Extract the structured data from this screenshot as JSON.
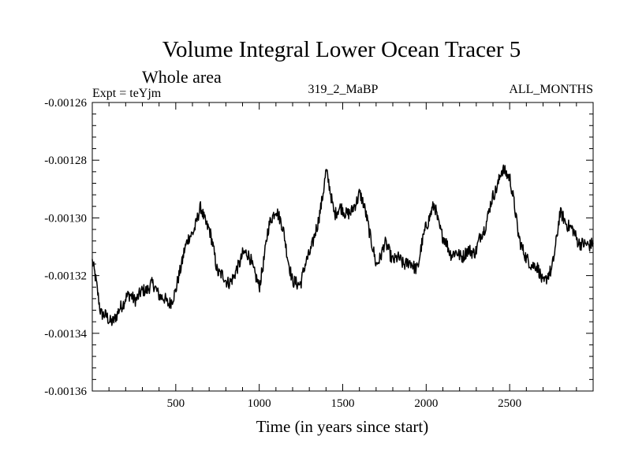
{
  "chart_data": {
    "type": "line",
    "title": "Volume Integral Lower Ocean Tracer 5",
    "subtitle": "Whole area",
    "expt_label": "Expt = teYjm",
    "center_label": "319_2_MaBP",
    "right_label": "ALL_MONTHS",
    "xlabel": "Time (in years since start)",
    "ylabel": "",
    "xlim": [
      0,
      3000
    ],
    "ylim": [
      -0.00136,
      -0.00126
    ],
    "x_ticks": [
      500,
      1000,
      1500,
      2000,
      2500
    ],
    "x_tick_labels": [
      "500",
      "1000",
      "1500",
      "2000",
      "2500"
    ],
    "y_ticks": [
      -0.00136,
      -0.00134,
      -0.00132,
      -0.0013,
      -0.00128,
      -0.00126
    ],
    "y_tick_labels": [
      "-0.00136",
      "-0.00134",
      "-0.00132",
      "-0.00130",
      "-0.00128",
      "-0.00126"
    ],
    "grid": false,
    "series": [
      {
        "name": "teYjm",
        "color": "#000000",
        "x": [
          0,
          50,
          100,
          150,
          200,
          250,
          300,
          350,
          400,
          450,
          500,
          550,
          600,
          650,
          700,
          750,
          800,
          850,
          900,
          950,
          1000,
          1050,
          1100,
          1150,
          1200,
          1250,
          1300,
          1350,
          1400,
          1450,
          1500,
          1550,
          1600,
          1650,
          1700,
          1750,
          1800,
          1850,
          1900,
          1950,
          2000,
          2050,
          2100,
          2150,
          2200,
          2250,
          2300,
          2350,
          2400,
          2450,
          2500,
          2550,
          2600,
          2650,
          2700,
          2750,
          2800,
          2850,
          2900,
          2950,
          3000
        ],
        "values": [
          -0.001315,
          -0.001332,
          -0.001336,
          -0.001334,
          -0.001327,
          -0.001328,
          -0.001326,
          -0.001323,
          -0.001326,
          -0.00133,
          -0.001326,
          -0.001311,
          -0.001305,
          -0.001297,
          -0.001304,
          -0.001318,
          -0.001322,
          -0.001321,
          -0.001312,
          -0.001314,
          -0.001325,
          -0.001305,
          -0.001296,
          -0.001306,
          -0.001323,
          -0.001322,
          -0.001312,
          -0.001303,
          -0.001284,
          -0.001298,
          -0.001297,
          -0.001299,
          -0.001291,
          -0.001301,
          -0.001317,
          -0.001309,
          -0.001314,
          -0.001315,
          -0.001316,
          -0.001317,
          -0.001302,
          -0.001296,
          -0.001307,
          -0.001312,
          -0.001313,
          -0.001312,
          -0.001311,
          -0.001303,
          -0.001293,
          -0.001284,
          -0.001285,
          -0.001305,
          -0.001315,
          -0.001316,
          -0.001322,
          -0.001319,
          -0.001299,
          -0.001302,
          -0.001307,
          -0.00131,
          -0.001308
        ]
      }
    ]
  }
}
